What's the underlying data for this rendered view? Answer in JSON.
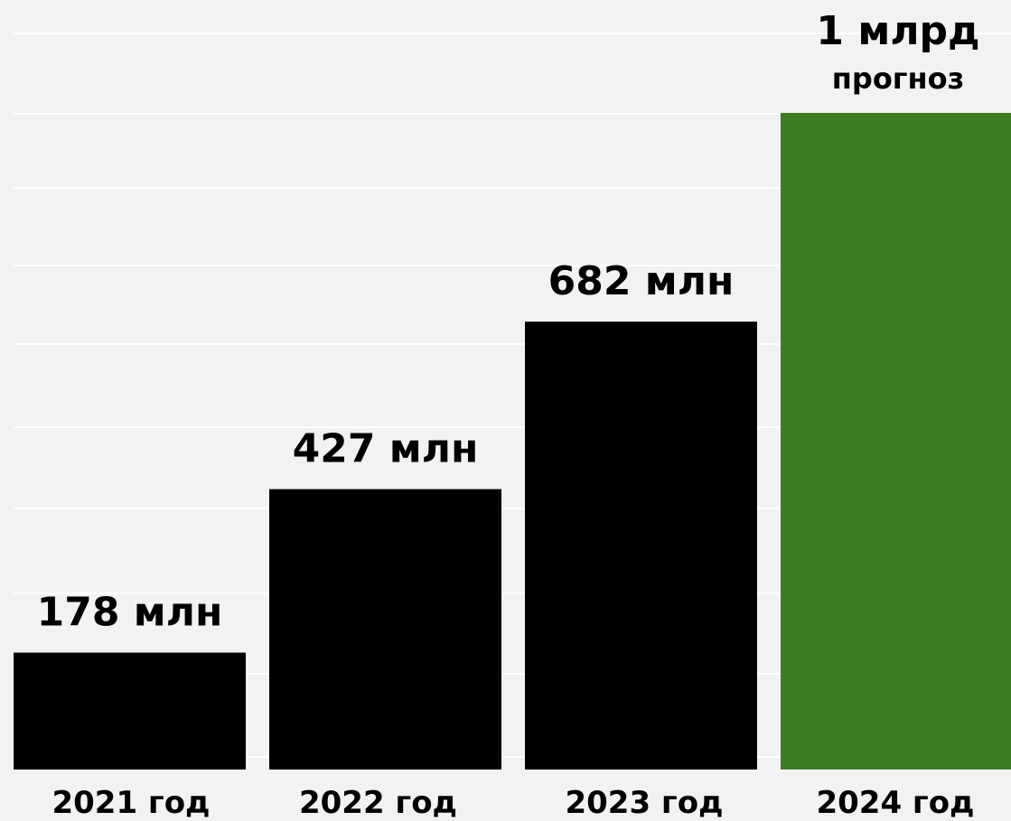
{
  "chart_data": {
    "type": "bar",
    "categories": [
      "2021 год",
      "2022 год",
      "2023 год",
      "2024 год"
    ],
    "values": [
      178,
      427,
      682,
      1000
    ],
    "value_labels": [
      "178 млн",
      "427 млн",
      "682 млн",
      "1 млрд"
    ],
    "forecast_note": "прогноз",
    "ylim": [
      0,
      1000
    ],
    "grid": true,
    "colors": {
      "actual": "#000000",
      "forecast": "#3c7d24",
      "forecast_label": "#5aa52e",
      "background": "#f2f2f2",
      "grid": "#ffffff"
    }
  }
}
